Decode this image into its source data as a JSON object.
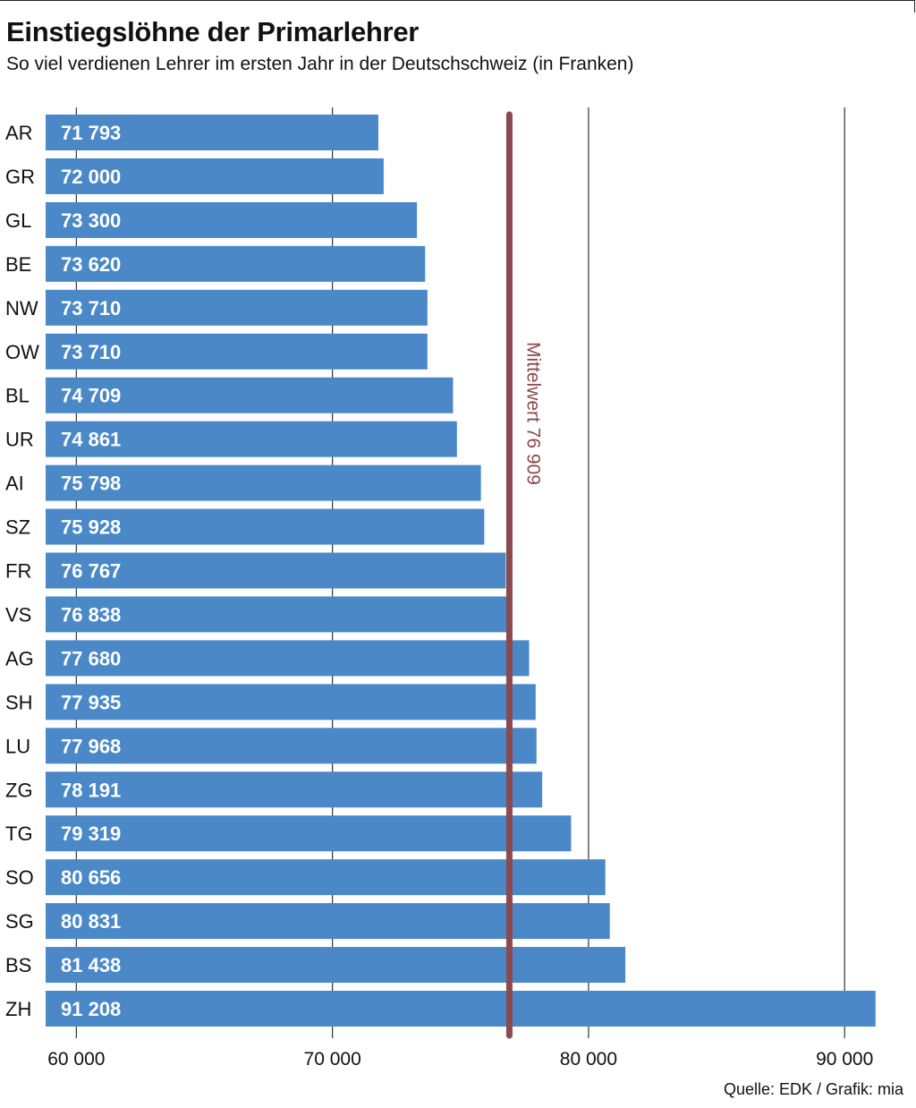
{
  "title": "Einstiegslöhne der Primarlehrer",
  "subtitle": "So viel verdienen Lehrer im ersten Jahr in der Deutschschweiz (in Franken)",
  "source": "Quelle: EDK / Grafik: mia",
  "colors": {
    "bar": "#4a88c8",
    "mean_line": "#8b4a4f",
    "grid": "#333333"
  },
  "chart_data": {
    "type": "bar",
    "orientation": "horizontal",
    "title": "Einstiegslöhne der Primarlehrer",
    "subtitle": "So viel verdienen Lehrer im ersten Jahr in der Deutschschweiz (in Franken)",
    "xlabel": "",
    "ylabel": "",
    "xlim": [
      58800,
      91600
    ],
    "grid": true,
    "ticks": [
      {
        "value": 60000,
        "label": "60 000"
      },
      {
        "value": 70000,
        "label": "70 000"
      },
      {
        "value": 80000,
        "label": "80 000"
      },
      {
        "value": 90000,
        "label": "90 000"
      }
    ],
    "categories": [
      "AR",
      "GR",
      "GL",
      "BE",
      "NW",
      "OW",
      "BL",
      "UR",
      "AI",
      "SZ",
      "FR",
      "VS",
      "AG",
      "SH",
      "LU",
      "ZG",
      "TG",
      "SO",
      "SG",
      "BS",
      "ZH"
    ],
    "values": [
      71793,
      72000,
      73300,
      73620,
      73710,
      73710,
      74709,
      74861,
      75798,
      75928,
      76767,
      76838,
      77680,
      77935,
      77968,
      78191,
      79319,
      80656,
      80831,
      81438,
      91208
    ],
    "value_labels": [
      "71 793",
      "72 000",
      "73 300",
      "73 620",
      "73 710",
      "73 710",
      "74 709",
      "74 861",
      "75 798",
      "75 928",
      "76 767",
      "76 838",
      "77 680",
      "77 935",
      "77 968",
      "78 191",
      "79 319",
      "80 656",
      "80 831",
      "81 438",
      "91 208"
    ],
    "reference_line": {
      "value": 76909,
      "label": "Mittelwert 76 909"
    }
  }
}
